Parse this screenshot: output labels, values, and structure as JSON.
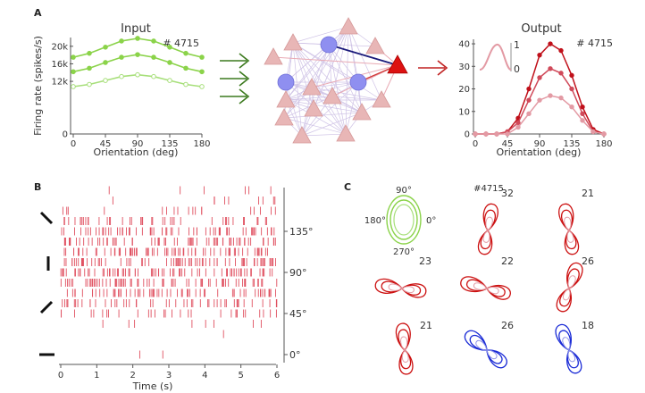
{
  "panels": {
    "a": "A",
    "b": "B",
    "c": "C"
  },
  "input_chart": {
    "type": "line",
    "title": "Input",
    "annotation": "# 4715",
    "xlabel": "Orientation (deg)",
    "ylabel": "Firing rate (spikes/s)",
    "x": [
      0,
      22.5,
      45,
      67.5,
      90,
      112.5,
      135,
      157.5,
      180
    ],
    "xticks": [
      "0",
      "45",
      "90",
      "135",
      "180"
    ],
    "xtick_values": [
      0,
      45,
      90,
      135,
      180
    ],
    "yticks": [
      "0",
      "12k",
      "16k",
      "20k"
    ],
    "ytick_values": [
      0,
      12000,
      16000,
      20000
    ],
    "xlim": [
      0,
      180
    ],
    "ylim": [
      0,
      22000
    ],
    "series": [
      {
        "values": [
          17500,
          18400,
          19800,
          21200,
          21800,
          21200,
          19800,
          18400,
          17500
        ],
        "color": "#8bd34a",
        "marker": "filled"
      },
      {
        "values": [
          14200,
          15000,
          16300,
          17500,
          18100,
          17500,
          16300,
          15000,
          14200
        ],
        "color": "#8bd34a",
        "marker": "filled"
      },
      {
        "values": [
          10800,
          11300,
          12200,
          13100,
          13500,
          13100,
          12200,
          11300,
          10800
        ],
        "color": "#a7df7a",
        "marker": "open"
      }
    ]
  },
  "output_chart": {
    "type": "line",
    "title": "Output",
    "annotation": "# 4715",
    "xlabel": "Orientation (deg)",
    "inset_ticks": [
      "1",
      "0"
    ],
    "x": [
      0,
      15,
      30,
      45,
      60,
      75,
      90,
      105,
      120,
      135,
      150,
      165,
      180
    ],
    "xticks": [
      "0",
      "45",
      "90",
      "135",
      "180"
    ],
    "xtick_values": [
      0,
      45,
      90,
      135,
      180
    ],
    "yticks": [
      "0",
      "10",
      "20",
      "30",
      "40"
    ],
    "ytick_values": [
      0,
      10,
      20,
      30,
      40
    ],
    "xlim": [
      0,
      180
    ],
    "ylim": [
      0,
      42
    ],
    "series": [
      {
        "values": [
          0,
          0,
          0,
          1,
          7,
          20,
          35,
          40,
          37,
          26,
          12,
          2,
          0
        ],
        "color": "#c0101a"
      },
      {
        "values": [
          0,
          0,
          0,
          1,
          5,
          15,
          25,
          29,
          27,
          20,
          9,
          1,
          0
        ],
        "color": "#d04a5a"
      },
      {
        "values": [
          0,
          0,
          0,
          0,
          3,
          9,
          15,
          17,
          16,
          12,
          6,
          1,
          0
        ],
        "color": "#e39aa4"
      }
    ]
  },
  "raster": {
    "type": "raster",
    "xlabel": "Time (s)",
    "xticks": [
      "0",
      "1",
      "2",
      "3",
      "4",
      "5",
      "6"
    ],
    "xtick_values": [
      0,
      1,
      2,
      3,
      4,
      5,
      6
    ],
    "xlim": [
      0,
      6
    ],
    "orientation_labels": [
      "135°",
      "90°",
      "45°",
      "0°"
    ],
    "orientation_values": [
      135,
      90,
      45,
      0
    ],
    "trial_orientations": [
      180,
      168.75,
      157.5,
      146.25,
      135,
      123.75,
      112.5,
      101.25,
      90,
      78.75,
      67.5,
      56.25,
      45,
      33.75,
      22.5,
      11.25,
      0
    ],
    "trial_spike_counts": [
      6,
      9,
      18,
      42,
      60,
      68,
      72,
      74,
      75,
      72,
      64,
      48,
      30,
      8,
      1,
      0,
      2
    ],
    "color": "#e05060"
  },
  "network": {
    "neuron_id": "# 4715"
  },
  "polar": {
    "legend_angles": [
      "90°",
      "180°",
      "0°",
      "270°"
    ],
    "cells": [
      {
        "id": "#4715",
        "count": "32",
        "angle": 80,
        "color": "#cc1111"
      },
      {
        "count": "21",
        "angle": 100,
        "color": "#cc1111"
      },
      {
        "count": "23",
        "angle": 172,
        "color": "#cc1111"
      },
      {
        "count": "22",
        "angle": 165,
        "color": "#cc1111"
      },
      {
        "count": "26",
        "angle": 70,
        "color": "#cc1111"
      },
      {
        "count": "21",
        "angle": 95,
        "color": "#cc1111"
      },
      {
        "count": "26",
        "angle": 140,
        "color": "#1a2bd6"
      },
      {
        "count": "18",
        "angle": 110,
        "color": "#1a2bd6"
      }
    ]
  }
}
